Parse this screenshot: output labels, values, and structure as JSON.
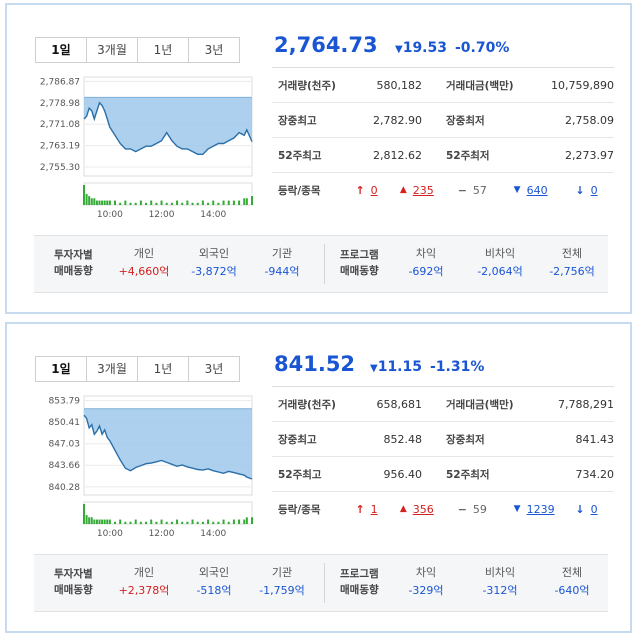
{
  "tab_labels": [
    "1일",
    "3개월",
    "1년",
    "3년"
  ],
  "stat_labels": {
    "volume": "거래량(천주)",
    "amount": "거래대금(백만)",
    "day_high": "장중최고",
    "day_low": "장중최저",
    "w52_high": "52주최고",
    "w52_low": "52주최저",
    "updown": "등락/종목"
  },
  "investor_labels": {
    "header1": "투자자별",
    "header2": "매매동향",
    "individual": "개인",
    "foreign": "외국인",
    "institution": "기관"
  },
  "program_labels": {
    "header1": "프로그램",
    "header2": "매매동향",
    "arbitrage": "차익",
    "non_arbitrage": "비차익",
    "total": "전체"
  },
  "colors": {
    "up": "#d52020",
    "down": "#1a55d3",
    "chart_fill": "#9ec8ea",
    "chart_line": "#2a6fa8",
    "volume": "#33aa33"
  },
  "panels": [
    {
      "price": "2,764.73",
      "change": "19.53",
      "change_pct": "-0.70%",
      "direction_icon": "triangle-down-icon",
      "volume": "580,182",
      "amount": "10,759,890",
      "day_high": "2,782.90",
      "day_low": "2,758.09",
      "w52_high": "2,812.62",
      "w52_low": "2,273.97",
      "upper_limit": "0",
      "rise": "235",
      "flat": "57",
      "fall": "640",
      "lower_limit": "0",
      "investor": {
        "individual": "+4,660억",
        "foreign": "-3,872억",
        "institution": "-944억"
      },
      "program": {
        "arbitrage": "-692억",
        "non_arbitrage": "-2,064억",
        "total": "-2,756억"
      },
      "chart_data": {
        "type": "area",
        "y_ticks": [
          "2,786.87",
          "2,778.98",
          "2,771.08",
          "2,763.19",
          "2,755.30"
        ],
        "y_tick_values": [
          2786.87,
          2778.98,
          2771.08,
          2763.19,
          2755.3
        ],
        "x_ticks": [
          "10:00",
          "12:00",
          "14:00"
        ],
        "x_tick_values": [
          10,
          12,
          14
        ],
        "xlim": [
          9,
          15.5
        ],
        "ylim": [
          2752,
          2788.5
        ],
        "baseline": 2781,
        "x": [
          9.0,
          9.1,
          9.2,
          9.3,
          9.4,
          9.5,
          9.6,
          9.7,
          9.8,
          9.9,
          10.0,
          10.2,
          10.4,
          10.6,
          10.8,
          11.0,
          11.2,
          11.4,
          11.6,
          11.8,
          12.0,
          12.2,
          12.4,
          12.6,
          12.8,
          13.0,
          13.2,
          13.4,
          13.6,
          13.8,
          14.0,
          14.2,
          14.4,
          14.6,
          14.8,
          15.0,
          15.2,
          15.3,
          15.5
        ],
        "y": [
          2773,
          2774,
          2777,
          2776,
          2773,
          2776,
          2779,
          2778,
          2776,
          2773,
          2770,
          2767,
          2764,
          2762,
          2762,
          2761,
          2762,
          2763,
          2763,
          2764,
          2765,
          2768,
          2765,
          2763,
          2762,
          2762,
          2761,
          2760,
          2760,
          2762,
          2763,
          2764,
          2764,
          2765,
          2766,
          2768,
          2767,
          2769,
          2764.7
        ],
        "volume": [
          9,
          5,
          4,
          3,
          3,
          2,
          2,
          2,
          2,
          2,
          2,
          2,
          1,
          2,
          1,
          1,
          2,
          1,
          2,
          1,
          2,
          1,
          1,
          2,
          1,
          2,
          1,
          1,
          2,
          1,
          2,
          1,
          2,
          2,
          2,
          2,
          3,
          3,
          4
        ]
      }
    },
    {
      "price": "841.52",
      "change": "11.15",
      "change_pct": "-1.31%",
      "direction_icon": "triangle-down-icon",
      "volume": "658,681",
      "amount": "7,788,291",
      "day_high": "852.48",
      "day_low": "841.43",
      "w52_high": "956.40",
      "w52_low": "734.20",
      "upper_limit": "1",
      "rise": "356",
      "flat": "59",
      "fall": "1239",
      "lower_limit": "0",
      "investor": {
        "individual": "+2,378억",
        "foreign": "-518억",
        "institution": "-1,759억"
      },
      "program": {
        "arbitrage": "-329억",
        "non_arbitrage": "-312억",
        "total": "-640억"
      },
      "chart_data": {
        "type": "area",
        "y_ticks": [
          "853.79",
          "850.41",
          "847.03",
          "843.66",
          "840.28"
        ],
        "y_tick_values": [
          853.79,
          850.41,
          847.03,
          843.66,
          840.28
        ],
        "x_ticks": [
          "10:00",
          "12:00",
          "14:00"
        ],
        "x_tick_values": [
          10,
          12,
          14
        ],
        "xlim": [
          9,
          15.5
        ],
        "ylim": [
          839,
          854.5
        ],
        "baseline": 852.5,
        "x": [
          9.0,
          9.1,
          9.2,
          9.3,
          9.4,
          9.5,
          9.6,
          9.7,
          9.8,
          9.9,
          10.0,
          10.2,
          10.4,
          10.6,
          10.8,
          11.0,
          11.2,
          11.4,
          11.6,
          11.8,
          12.0,
          12.2,
          12.4,
          12.6,
          12.8,
          13.0,
          13.2,
          13.4,
          13.6,
          13.8,
          14.0,
          14.2,
          14.4,
          14.6,
          14.8,
          15.0,
          15.2,
          15.3,
          15.5
        ],
        "y": [
          851.5,
          851,
          849.5,
          850,
          848.5,
          849,
          849.8,
          848.5,
          849.2,
          848,
          847.5,
          846,
          844.5,
          843.2,
          842.8,
          843.3,
          843.6,
          843.9,
          844,
          844.2,
          844.4,
          844.1,
          843.8,
          843.5,
          843.7,
          843.4,
          843.2,
          843,
          842.9,
          843.1,
          842.8,
          842.6,
          842.4,
          842.7,
          842.5,
          842.3,
          842.1,
          841.8,
          841.5
        ],
        "volume": [
          9,
          4,
          3,
          3,
          2,
          2,
          2,
          2,
          2,
          2,
          2,
          1,
          2,
          1,
          1,
          2,
          1,
          1,
          2,
          1,
          2,
          1,
          1,
          2,
          1,
          1,
          2,
          1,
          1,
          2,
          1,
          1,
          2,
          1,
          2,
          2,
          2,
          3,
          3
        ]
      }
    }
  ]
}
